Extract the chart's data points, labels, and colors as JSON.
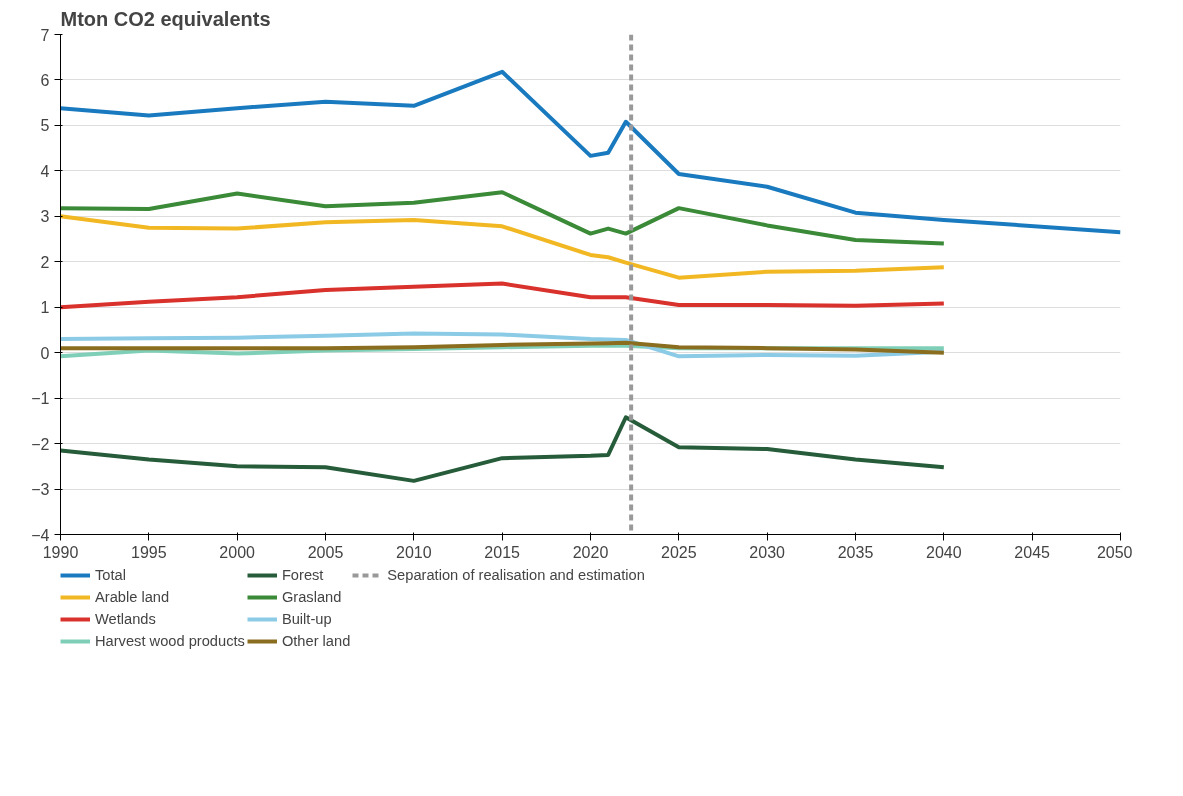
{
  "chart_data": {
    "type": "line",
    "title": "Mton CO2 equivalents",
    "x": [
      1990,
      1995,
      2000,
      2005,
      2010,
      2015,
      2020,
      2021,
      2022,
      2025,
      2030,
      2035,
      2040
    ],
    "series": [
      {
        "name": "Total",
        "color": "#1a7abf",
        "x": [
          1990,
          1995,
          2000,
          2005,
          2010,
          2015,
          2020,
          2021,
          2022,
          2025,
          2030,
          2035,
          2040,
          2050
        ],
        "values": [
          5.38,
          5.22,
          5.38,
          5.52,
          5.43,
          6.18,
          4.33,
          4.4,
          5.08,
          3.93,
          3.65,
          3.08,
          2.92,
          2.65
        ]
      },
      {
        "name": "Arable land",
        "color": "#f2b824",
        "values": [
          3.0,
          2.75,
          2.73,
          2.87,
          2.92,
          2.78,
          2.15,
          2.1,
          1.98,
          1.65,
          1.78,
          1.8,
          1.88
        ]
      },
      {
        "name": "Wetlands",
        "color": "#d9312b",
        "values": [
          1.0,
          1.12,
          1.22,
          1.38,
          1.45,
          1.52,
          1.22,
          1.22,
          1.22,
          1.05,
          1.05,
          1.03,
          1.08
        ]
      },
      {
        "name": "Harvest wood products",
        "color": "#7fcfb8",
        "values": [
          -0.08,
          0.05,
          -0.02,
          0.05,
          0.08,
          0.12,
          0.15,
          0.15,
          0.15,
          0.1,
          0.1,
          0.1,
          0.1
        ]
      },
      {
        "name": "Forest",
        "color": "#265c3a",
        "values": [
          -2.15,
          -2.35,
          -2.5,
          -2.52,
          -2.82,
          -2.32,
          -2.27,
          -2.25,
          -1.42,
          -2.08,
          -2.12,
          -2.35,
          -2.52
        ]
      },
      {
        "name": "Grasland",
        "color": "#3a8a38",
        "values": [
          3.18,
          3.16,
          3.5,
          3.22,
          3.3,
          3.53,
          2.62,
          2.73,
          2.62,
          3.18,
          2.8,
          2.48,
          2.4
        ]
      },
      {
        "name": "Built-up",
        "color": "#8ccbe6",
        "values": [
          0.3,
          0.32,
          0.33,
          0.37,
          0.42,
          0.4,
          0.3,
          0.29,
          0.28,
          -0.08,
          -0.05,
          -0.07,
          0.02
        ]
      },
      {
        "name": "Other land",
        "color": "#8a6d1e",
        "values": [
          0.1,
          0.1,
          0.1,
          0.1,
          0.12,
          0.17,
          0.2,
          0.21,
          0.22,
          0.12,
          0.1,
          0.07,
          0.0
        ]
      }
    ],
    "xlim": [
      1990,
      2050
    ],
    "xticks": [
      1990,
      1995,
      2000,
      2005,
      2010,
      2015,
      2020,
      2025,
      2030,
      2035,
      2040,
      2045,
      2050
    ],
    "ylim": [
      -4,
      7
    ],
    "yticks": [
      -4,
      -3,
      -2,
      -1,
      0,
      1,
      2,
      3,
      4,
      5,
      6,
      7
    ],
    "ref_lines": [
      {
        "axis": "x",
        "value": 2022.3,
        "label": "Separation of realisation and estimation",
        "color": "#999999",
        "line_style": "dashed"
      }
    ],
    "grid": "y",
    "legend": "bottom",
    "marker": "none",
    "line_style": "solid"
  }
}
